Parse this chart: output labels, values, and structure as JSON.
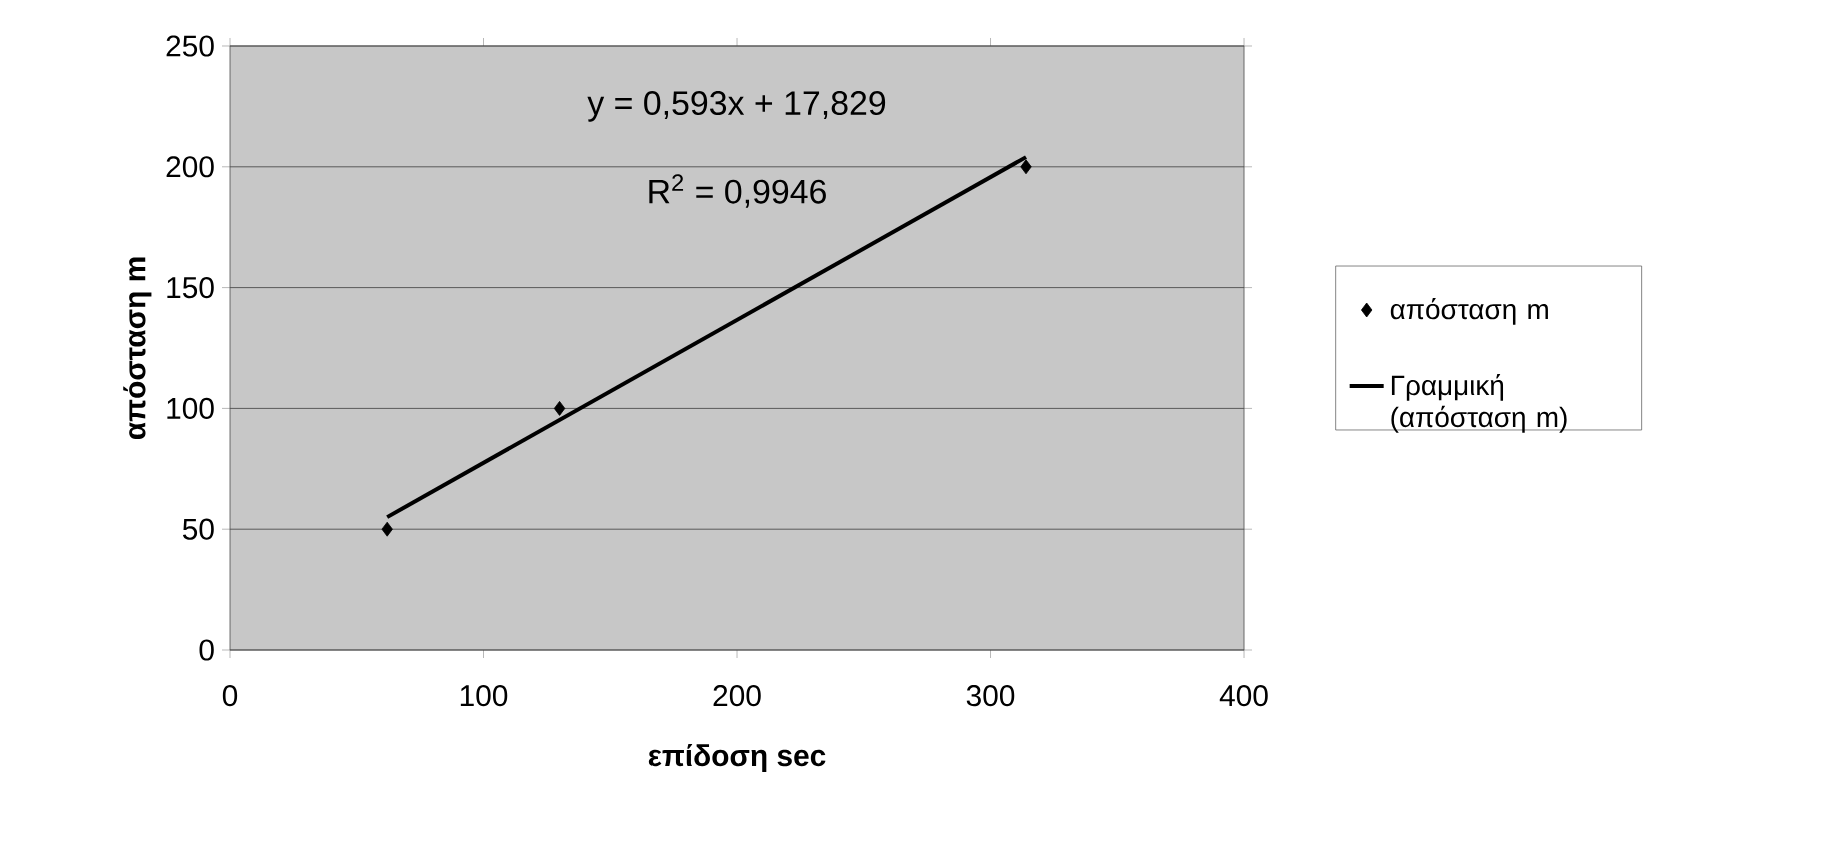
{
  "chart_data": {
    "type": "scatter",
    "xlabel": "επίδοση sec",
    "ylabel": "απόσταση m",
    "xlim": [
      0,
      400
    ],
    "xticks": [
      0,
      100,
      200,
      300,
      400
    ],
    "ylim": [
      0,
      250
    ],
    "yticks": [
      0,
      50,
      100,
      150,
      200,
      250
    ],
    "grid": "y",
    "legend": "right",
    "line_style": "solid",
    "series": [
      {
        "name": "απόσταση m",
        "marker": "diamond",
        "color": "#000000",
        "x": [
          62,
          130,
          314
        ],
        "values": [
          50,
          100,
          200
        ]
      },
      {
        "name": "Γραμμική (απόσταση m)",
        "type": "line",
        "marker": "none",
        "color": "#000000",
        "x": [
          62,
          314
        ],
        "values": [
          55,
          204
        ]
      }
    ],
    "annotations": [
      "y = 0,593x + 17,829",
      "R$^{2}$ = 0,9946"
    ]
  }
}
